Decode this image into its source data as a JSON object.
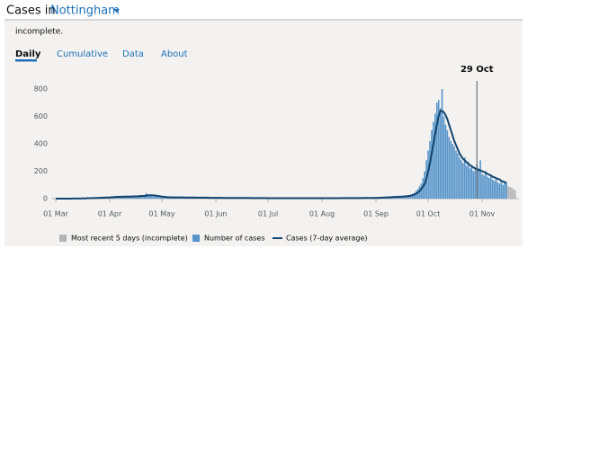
{
  "header": {
    "prefix": "Cases in",
    "location": "Nottingham"
  },
  "note": "incomplete.",
  "tabs": [
    "Daily",
    "Cumulative",
    "Data",
    "About"
  ],
  "chart_data": {
    "type": "bar",
    "annotation": "29 Oct",
    "categories": [
      "01 Mar",
      null,
      null,
      null,
      null,
      null,
      null,
      null,
      null,
      null,
      null,
      null,
      null,
      null,
      null,
      null,
      null,
      null,
      null,
      null,
      null,
      null,
      null,
      null,
      null,
      null,
      null,
      null,
      null,
      null,
      null,
      "01 Apr",
      null,
      null,
      null,
      null,
      null,
      null,
      null,
      null,
      null,
      null,
      null,
      null,
      null,
      null,
      null,
      null,
      null,
      null,
      null,
      null,
      null,
      null,
      null,
      null,
      null,
      null,
      null,
      null,
      null,
      "01 May",
      null,
      null,
      null,
      null,
      null,
      null,
      null,
      null,
      null,
      null,
      null,
      null,
      null,
      null,
      null,
      null,
      null,
      null,
      null,
      null,
      null,
      null,
      null,
      null,
      null,
      null,
      null,
      null,
      null,
      null,
      "01 Jun",
      null,
      null,
      null,
      null,
      null,
      null,
      null,
      null,
      null,
      null,
      null,
      null,
      null,
      null,
      null,
      null,
      null,
      null,
      null,
      null,
      null,
      null,
      null,
      null,
      null,
      null,
      null,
      null,
      null,
      "01 Jul",
      null,
      null,
      null,
      null,
      null,
      null,
      null,
      null,
      null,
      null,
      null,
      null,
      null,
      null,
      null,
      null,
      null,
      null,
      null,
      null,
      null,
      null,
      null,
      null,
      null,
      null,
      null,
      null,
      null,
      null,
      "01 Aug",
      null,
      null,
      null,
      null,
      null,
      null,
      null,
      null,
      null,
      null,
      null,
      null,
      null,
      null,
      null,
      null,
      null,
      null,
      null,
      null,
      null,
      null,
      null,
      null,
      null,
      null,
      null,
      null,
      null,
      null,
      "01 Sep",
      null,
      null,
      null,
      null,
      null,
      null,
      null,
      null,
      null,
      null,
      null,
      null,
      null,
      null,
      null,
      null,
      null,
      null,
      null,
      null,
      null,
      null,
      null,
      null,
      null,
      null,
      null,
      null,
      null,
      "01 Oct",
      null,
      null,
      null,
      null,
      null,
      null,
      null,
      null,
      null,
      null,
      null,
      null,
      null,
      null,
      null,
      null,
      null,
      null,
      null,
      null,
      null,
      null,
      null,
      null,
      null,
      null,
      null,
      null,
      null,
      null,
      "01 Nov",
      null,
      null,
      null,
      null,
      null,
      null,
      null,
      null,
      null,
      null,
      null,
      null,
      null,
      null,
      null,
      null,
      null,
      null,
      null
    ],
    "series": [
      {
        "name": "Most recent 5 days (incomplete)",
        "color": "#b1b4b6",
        "kind": "bar",
        "values": [
          null,
          null,
          null,
          null,
          null,
          null,
          null,
          null,
          null,
          null,
          null,
          null,
          null,
          null,
          null,
          null,
          null,
          null,
          null,
          null,
          null,
          null,
          null,
          null,
          null,
          null,
          null,
          null,
          null,
          null,
          null,
          null,
          null,
          null,
          null,
          null,
          null,
          null,
          null,
          null,
          null,
          null,
          null,
          null,
          null,
          null,
          null,
          null,
          null,
          null,
          null,
          null,
          null,
          null,
          null,
          null,
          null,
          null,
          null,
          null,
          null,
          null,
          null,
          null,
          null,
          null,
          null,
          null,
          null,
          null,
          null,
          null,
          null,
          null,
          null,
          null,
          null,
          null,
          null,
          null,
          null,
          null,
          null,
          null,
          null,
          null,
          null,
          null,
          null,
          null,
          null,
          null,
          null,
          null,
          null,
          null,
          null,
          null,
          null,
          null,
          null,
          null,
          null,
          null,
          null,
          null,
          null,
          null,
          null,
          null,
          null,
          null,
          null,
          null,
          null,
          null,
          null,
          null,
          null,
          null,
          null,
          null,
          null,
          null,
          null,
          null,
          null,
          null,
          null,
          null,
          null,
          null,
          null,
          null,
          null,
          null,
          null,
          null,
          null,
          null,
          null,
          null,
          null,
          null,
          null,
          null,
          null,
          null,
          null,
          null,
          null,
          null,
          null,
          null,
          null,
          null,
          null,
          null,
          null,
          null,
          null,
          null,
          null,
          null,
          null,
          null,
          null,
          null,
          null,
          null,
          null,
          null,
          null,
          null,
          null,
          null,
          null,
          null,
          null,
          null,
          null,
          null,
          null,
          null,
          null,
          null,
          null,
          null,
          null,
          null,
          null,
          null,
          null,
          null,
          null,
          null,
          null,
          null,
          null,
          null,
          null,
          null,
          null,
          null,
          null,
          null,
          null,
          null,
          null,
          null,
          null,
          null,
          null,
          null,
          null,
          null,
          null,
          null,
          null,
          null,
          null,
          null,
          null,
          null,
          null,
          null,
          null,
          null,
          null,
          null,
          null,
          null,
          null,
          null,
          null,
          null,
          null,
          null,
          null,
          null,
          null,
          null,
          null,
          null,
          null,
          null,
          null,
          null,
          null,
          null,
          null,
          null,
          null,
          null,
          null,
          null,
          null,
          null,
          null,
          null,
          90,
          85,
          80,
          70,
          60
        ]
      },
      {
        "name": "Number of cases",
        "color": "#5694ca",
        "kind": "bar",
        "values": [
          0,
          0,
          0,
          0,
          0,
          0,
          0,
          0,
          0,
          1,
          0,
          1,
          1,
          2,
          1,
          2,
          3,
          2,
          4,
          3,
          5,
          4,
          6,
          5,
          7,
          6,
          8,
          9,
          7,
          10,
          11,
          12,
          10,
          14,
          13,
          11,
          15,
          16,
          12,
          14,
          18,
          13,
          15,
          17,
          20,
          14,
          16,
          19,
          22,
          25,
          18,
          20,
          40,
          28,
          22,
          18,
          16,
          15,
          14,
          12,
          13,
          12,
          11,
          10,
          12,
          9,
          10,
          11,
          8,
          9,
          10,
          8,
          9,
          10,
          7,
          8,
          9,
          7,
          8,
          9,
          6,
          8,
          7,
          6,
          7,
          8,
          6,
          7,
          5,
          6,
          7,
          6,
          6,
          5,
          7,
          6,
          5,
          6,
          4,
          5,
          6,
          5,
          4,
          5,
          6,
          4,
          5,
          4,
          6,
          5,
          4,
          5,
          3,
          4,
          5,
          4,
          3,
          4,
          5,
          3,
          4,
          3,
          3,
          4,
          3,
          2,
          3,
          4,
          3,
          2,
          3,
          4,
          3,
          2,
          3,
          2,
          3,
          4,
          3,
          2,
          3,
          2,
          3,
          2,
          3,
          4,
          3,
          2,
          3,
          2,
          3,
          4,
          3,
          3,
          2,
          3,
          4,
          3,
          2,
          3,
          4,
          3,
          5,
          4,
          3,
          4,
          5,
          4,
          3,
          4,
          5,
          4,
          3,
          5,
          4,
          6,
          5,
          4,
          5,
          6,
          5,
          4,
          6,
          5,
          6,
          8,
          7,
          9,
          10,
          8,
          12,
          11,
          13,
          15,
          12,
          14,
          16,
          13,
          15,
          18,
          20,
          17,
          22,
          25,
          28,
          35,
          40,
          55,
          70,
          90,
          110,
          150,
          200,
          280,
          350,
          420,
          500,
          560,
          620,
          700,
          720,
          660,
          800,
          600,
          540,
          500,
          450,
          420,
          400,
          380,
          350,
          330,
          300,
          280,
          260,
          300,
          240,
          270,
          220,
          230,
          200,
          210,
          250,
          220,
          280,
          180,
          170,
          200,
          160,
          150,
          170,
          140,
          130,
          150,
          120,
          110,
          130,
          100,
          120,
          115,
          null,
          null,
          null,
          null,
          null
        ]
      },
      {
        "name": "Cases (7-day average)",
        "color": "#12436d",
        "kind": "line",
        "values": [
          0,
          0,
          0,
          0,
          0,
          0,
          0,
          0,
          0,
          0,
          1,
          1,
          1,
          1,
          1,
          2,
          2,
          2,
          3,
          3,
          3,
          4,
          4,
          5,
          5,
          6,
          6,
          7,
          7,
          8,
          8,
          9,
          10,
          11,
          12,
          13,
          13,
          14,
          14,
          14,
          15,
          15,
          15,
          15,
          16,
          16,
          16,
          17,
          18,
          19,
          20,
          20,
          23,
          24,
          25,
          25,
          24,
          23,
          21,
          19,
          17,
          15,
          14,
          12,
          11,
          10,
          10,
          10,
          9,
          9,
          9,
          9,
          9,
          9,
          8,
          8,
          8,
          8,
          8,
          8,
          8,
          7,
          7,
          7,
          7,
          7,
          7,
          7,
          6,
          6,
          6,
          6,
          6,
          6,
          6,
          6,
          5,
          5,
          5,
          5,
          5,
          5,
          5,
          5,
          5,
          5,
          5,
          5,
          5,
          5,
          5,
          5,
          4,
          4,
          4,
          4,
          4,
          4,
          4,
          4,
          4,
          4,
          3,
          3,
          3,
          3,
          3,
          3,
          3,
          3,
          3,
          3,
          3,
          3,
          3,
          3,
          3,
          3,
          3,
          3,
          3,
          3,
          3,
          3,
          3,
          3,
          3,
          3,
          3,
          3,
          3,
          3,
          3,
          3,
          3,
          3,
          3,
          3,
          3,
          3,
          3,
          3,
          3,
          3,
          4,
          4,
          4,
          4,
          4,
          4,
          4,
          4,
          4,
          4,
          4,
          4,
          5,
          5,
          5,
          5,
          5,
          5,
          5,
          5,
          5,
          6,
          6,
          7,
          7,
          8,
          9,
          9,
          10,
          11,
          12,
          12,
          13,
          14,
          14,
          15,
          16,
          17,
          18,
          20,
          22,
          25,
          30,
          36,
          45,
          55,
          70,
          88,
          110,
          150,
          200,
          260,
          330,
          400,
          470,
          540,
          600,
          640,
          640,
          630,
          610,
          580,
          540,
          500,
          460,
          420,
          390,
          360,
          330,
          310,
          290,
          280,
          265,
          255,
          245,
          235,
          228,
          220,
          215,
          210,
          205,
          200,
          195,
          190,
          180,
          175,
          170,
          160,
          155,
          150,
          145,
          140,
          130,
          125,
          120,
          115,
          null,
          null,
          null,
          null,
          null
        ]
      }
    ],
    "ylim": [
      0,
      800
    ],
    "yticks": [
      0,
      200,
      400,
      600,
      800
    ],
    "grid": false
  }
}
